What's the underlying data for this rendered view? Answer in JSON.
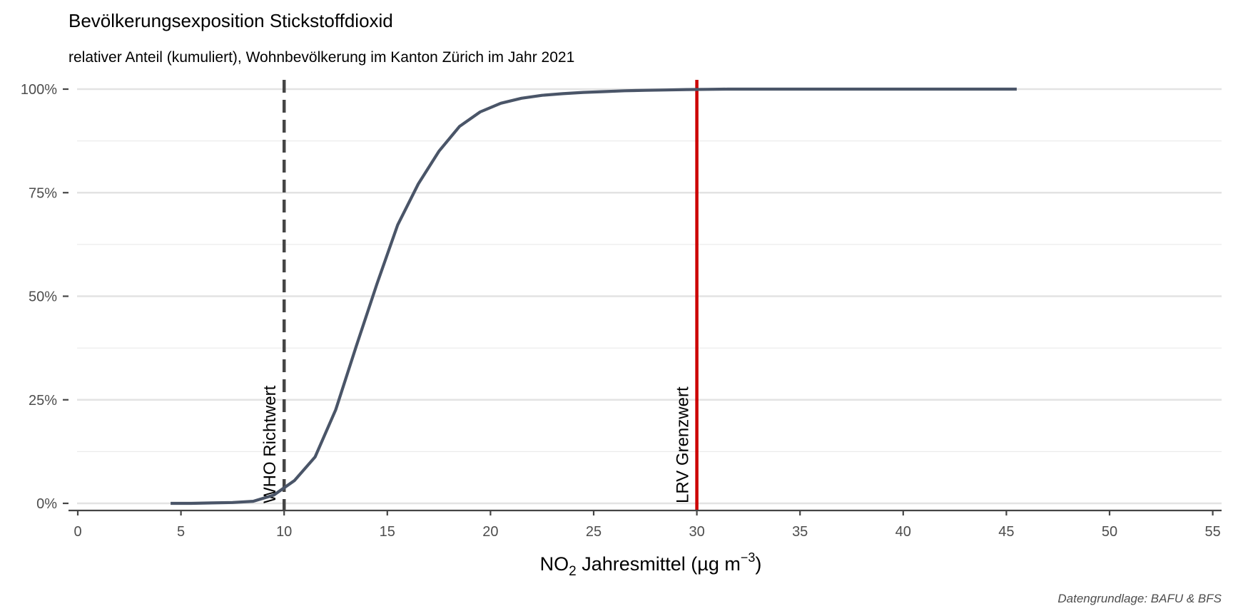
{
  "chart_data": {
    "type": "line",
    "title": "Bevölkerungsexposition Stickstoffdioxid",
    "subtitle": "relativer Anteil (kumuliert), Wohnbevölkerung im Kanton Zürich im Jahr 2021",
    "xlabel": {
      "main": "NO",
      "sub": "2",
      "unit_pre": " Jahresmittel (µg m",
      "sup": "−3",
      "unit_post": ")"
    },
    "ylabel": "",
    "caption": "Datengrundlage: BAFU & BFS",
    "xlim": [
      0,
      55
    ],
    "ylim": [
      0,
      1
    ],
    "x_ticks": [
      0,
      5,
      10,
      15,
      20,
      25,
      30,
      35,
      40,
      45,
      50,
      55
    ],
    "x_tick_labels": [
      "0",
      "5",
      "10",
      "15",
      "20",
      "25",
      "30",
      "35",
      "40",
      "45",
      "50",
      "55"
    ],
    "y_ticks": [
      0,
      0.25,
      0.5,
      0.75,
      1
    ],
    "y_tick_labels": [
      "0%",
      "25%",
      "50%",
      "75%",
      "100%"
    ],
    "grid": true,
    "series": [
      {
        "color": "#4a5568",
        "x": [
          4.5,
          5.5,
          6.5,
          7.5,
          8.5,
          9.5,
          10.5,
          11.5,
          12.5,
          13.5,
          14.5,
          15.5,
          16.5,
          17.5,
          18.5,
          19.5,
          20.5,
          21.5,
          22.5,
          23.5,
          24.5,
          25.5,
          26.5,
          27.5,
          28.5,
          29.5,
          30.5,
          31.5,
          35.5,
          40.5,
          45.5
        ],
        "y": [
          0.0,
          0.0,
          0.001,
          0.002,
          0.005,
          0.02,
          0.055,
          0.112,
          0.226,
          0.38,
          0.53,
          0.672,
          0.771,
          0.85,
          0.91,
          0.945,
          0.966,
          0.978,
          0.985,
          0.989,
          0.992,
          0.994,
          0.996,
          0.997,
          0.998,
          0.999,
          0.9995,
          1.0,
          1.0,
          1.0,
          1.0
        ]
      }
    ],
    "reference_lines": [
      {
        "x": 10,
        "label": "WHO Richtwert",
        "color": "#454545",
        "style": "dashed"
      },
      {
        "x": 30,
        "label": "LRV Grenzwert",
        "color": "#cc0000",
        "style": "solid"
      }
    ]
  }
}
